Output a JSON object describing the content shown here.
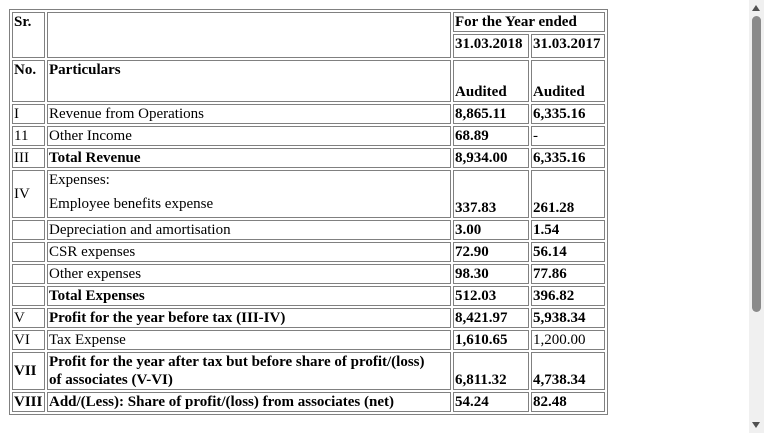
{
  "table": {
    "header": {
      "sr_label": "Sr.",
      "no_label": "No.",
      "particulars_label": "Particulars",
      "period_label": "For the Year ended",
      "col1_date": "31.03.2018",
      "col2_date": "31.03.2017",
      "col1_status": "Audited",
      "col2_status": "Audited"
    },
    "rows": [
      {
        "sr": "I",
        "particulars": "Revenue from Operations",
        "v2018": "8,865.11",
        "v2017": "6,335.16"
      },
      {
        "sr": "11",
        "particulars": "Other Income",
        "v2018": "68.89",
        "v2017": "-"
      },
      {
        "sr": "III",
        "particulars": "Total Revenue",
        "v2018": "8,934.00",
        "v2017": "6,335.16"
      },
      {
        "sr": "IV",
        "particulars": "Expenses:",
        "v2018": "",
        "v2017": ""
      },
      {
        "sr": "",
        "particulars": "Employee benefits expense",
        "v2018": "337.83",
        "v2017": "261.28"
      },
      {
        "sr": "",
        "particulars": "Depreciation and amortisation",
        "v2018": "3.00",
        "v2017": "1.54"
      },
      {
        "sr": "",
        "particulars": "CSR expenses",
        "v2018": "72.90",
        "v2017": "56.14"
      },
      {
        "sr": "",
        "particulars": "Other expenses",
        "v2018": "98.30",
        "v2017": "77.86"
      },
      {
        "sr": "",
        "particulars": "Total Expenses",
        "v2018": "512.03",
        "v2017": "396.82"
      },
      {
        "sr": "V",
        "particulars": "Profit for the year before tax (III-IV)",
        "v2018": "8,421.97",
        "v2017": "5,938.34"
      },
      {
        "sr": "VI",
        "particulars": "Tax Expense",
        "v2018": "1,610.65",
        "v2017": "1,200.00"
      },
      {
        "sr": "VII",
        "particulars_line1": "Profit for the year after tax but before share of profit/(loss)",
        "particulars_line2": "of associates (V-VI)",
        "v2018": "6,811.32",
        "v2017": "4,738.34"
      },
      {
        "sr": "VIII",
        "particulars": "Add/(Less): Share of profit/(loss) from associates (net)",
        "v2018": "54.24",
        "v2017": "82.48"
      }
    ]
  }
}
